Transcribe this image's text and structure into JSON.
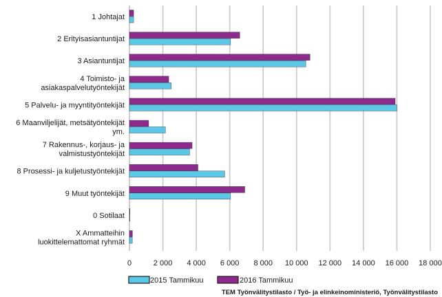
{
  "chart_data": {
    "type": "bar",
    "orientation": "horizontal",
    "categories": [
      [
        "1 Johtajat"
      ],
      [
        "2 Erityisasiantuntijat"
      ],
      [
        "3 Asiantuntijat"
      ],
      [
        "4 Toimisto- ja",
        "asiakaspalvelutyöntekijät"
      ],
      [
        "5 Palvelu- ja myyntityöntekijät"
      ],
      [
        "6 Maanviljelijät, metsätyöntekijät",
        "ym."
      ],
      [
        "7 Rakennus-, korjaus- ja",
        "valmistustyöntekijät"
      ],
      [
        "8 Prosessi- ja kuljetustyöntekijät"
      ],
      [
        "9 Muut työntekijät"
      ],
      [
        "0 Sotilaat"
      ],
      [
        "X Ammatteihin",
        "luokittelemattomat ryhmät"
      ]
    ],
    "series": [
      {
        "name": "2016 Tammikuu",
        "color": "#8e2a8e",
        "values": [
          250,
          6600,
          10800,
          2350,
          15900,
          1150,
          3750,
          4100,
          6900,
          30,
          180
        ]
      },
      {
        "name": "2015 Tammikuu",
        "color": "#5bc8ea",
        "values": [
          250,
          6050,
          10550,
          2500,
          16000,
          2150,
          3600,
          5700,
          6050,
          20,
          170
        ]
      }
    ],
    "xlim": [
      0,
      18000
    ],
    "xticks": [
      0,
      2000,
      4000,
      6000,
      8000,
      10000,
      12000,
      14000,
      16000,
      18000
    ],
    "xtick_labels": [
      "0",
      "2 000",
      "4 000",
      "6 000",
      "8 000",
      "10 000",
      "12 000",
      "14 000",
      "16 000",
      "18 000"
    ],
    "grid": true,
    "legend_position": "bottom",
    "legend": [
      {
        "label": "2015 Tammikuu",
        "color": "#5bc8ea"
      },
      {
        "label": "2016 Tammikuu",
        "color": "#8e2a8e"
      }
    ],
    "source": "TEM Työnvälitystilasto / Työ- ja elinkeinoministeriö, Työnvälitystilasto"
  }
}
